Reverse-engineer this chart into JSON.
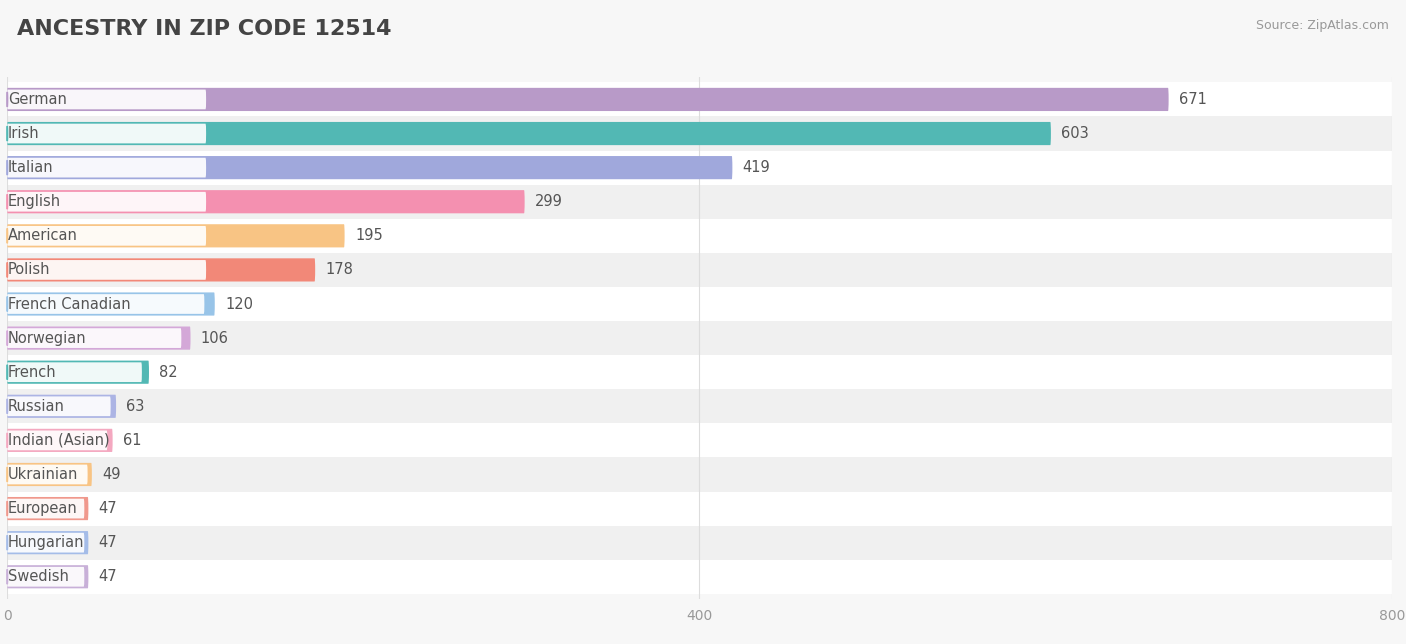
{
  "title": "ANCESTRY IN ZIP CODE 12514",
  "source": "Source: ZipAtlas.com",
  "categories": [
    "German",
    "Irish",
    "Italian",
    "English",
    "American",
    "Polish",
    "French Canadian",
    "Norwegian",
    "French",
    "Russian",
    "Indian (Asian)",
    "Ukrainian",
    "European",
    "Hungarian",
    "Swedish"
  ],
  "values": [
    671,
    603,
    419,
    299,
    195,
    178,
    120,
    106,
    82,
    63,
    61,
    49,
    47,
    47,
    47
  ],
  "bar_colors": [
    "#b89ac8",
    "#52b8b4",
    "#a0a8dc",
    "#f490b0",
    "#f8c484",
    "#f28878",
    "#98c4e8",
    "#d4a8d8",
    "#52b8b4",
    "#acb4e4",
    "#f4a8c0",
    "#f8c484",
    "#f0988c",
    "#a4bce8",
    "#c8b0d8"
  ],
  "xlim_max": 800,
  "background_color": "#f7f7f7",
  "title_fontsize": 16,
  "label_fontsize": 10.5,
  "value_fontsize": 10.5,
  "row_colors": [
    "#ffffff",
    "#f0f0f0"
  ]
}
